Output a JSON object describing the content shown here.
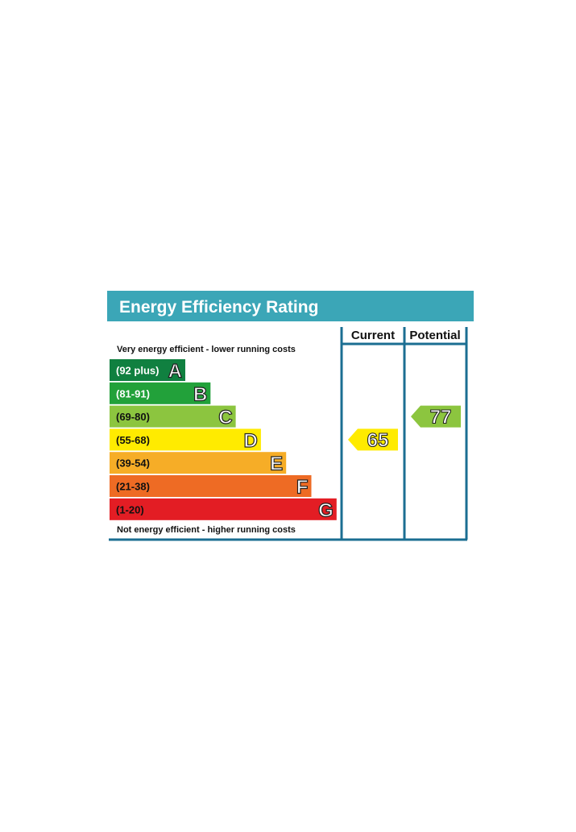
{
  "chart_data": {
    "type": "bar",
    "title": "Energy Efficiency Rating",
    "columns": [
      "Current",
      "Potential"
    ],
    "top_note": "Very energy efficient - lower running costs",
    "bottom_note": "Not energy efficient - higher running costs",
    "bands": [
      {
        "letter": "A",
        "range": "(92 plus)",
        "color": "#108040",
        "text_color": "#ffffff"
      },
      {
        "letter": "B",
        "range": "(81-91)",
        "color": "#22a13a",
        "text_color": "#ffffff"
      },
      {
        "letter": "C",
        "range": "(69-80)",
        "color": "#8cc53f",
        "text_color": "#111111"
      },
      {
        "letter": "D",
        "range": "(55-68)",
        "color": "#ffeb00",
        "text_color": "#111111"
      },
      {
        "letter": "E",
        "range": "(39-54)",
        "color": "#f6ad27",
        "text_color": "#111111"
      },
      {
        "letter": "F",
        "range": "(21-38)",
        "color": "#ee6b24",
        "text_color": "#111111"
      },
      {
        "letter": "G",
        "range": "(1-20)",
        "color": "#e31d24",
        "text_color": "#111111"
      }
    ],
    "current": {
      "value": 65,
      "band": "D",
      "color": "#ffeb00"
    },
    "potential": {
      "value": 77,
      "band": "C",
      "color": "#8cc53f"
    },
    "header_color": "#3ba6b7",
    "frame_color": "#1b6e92"
  }
}
